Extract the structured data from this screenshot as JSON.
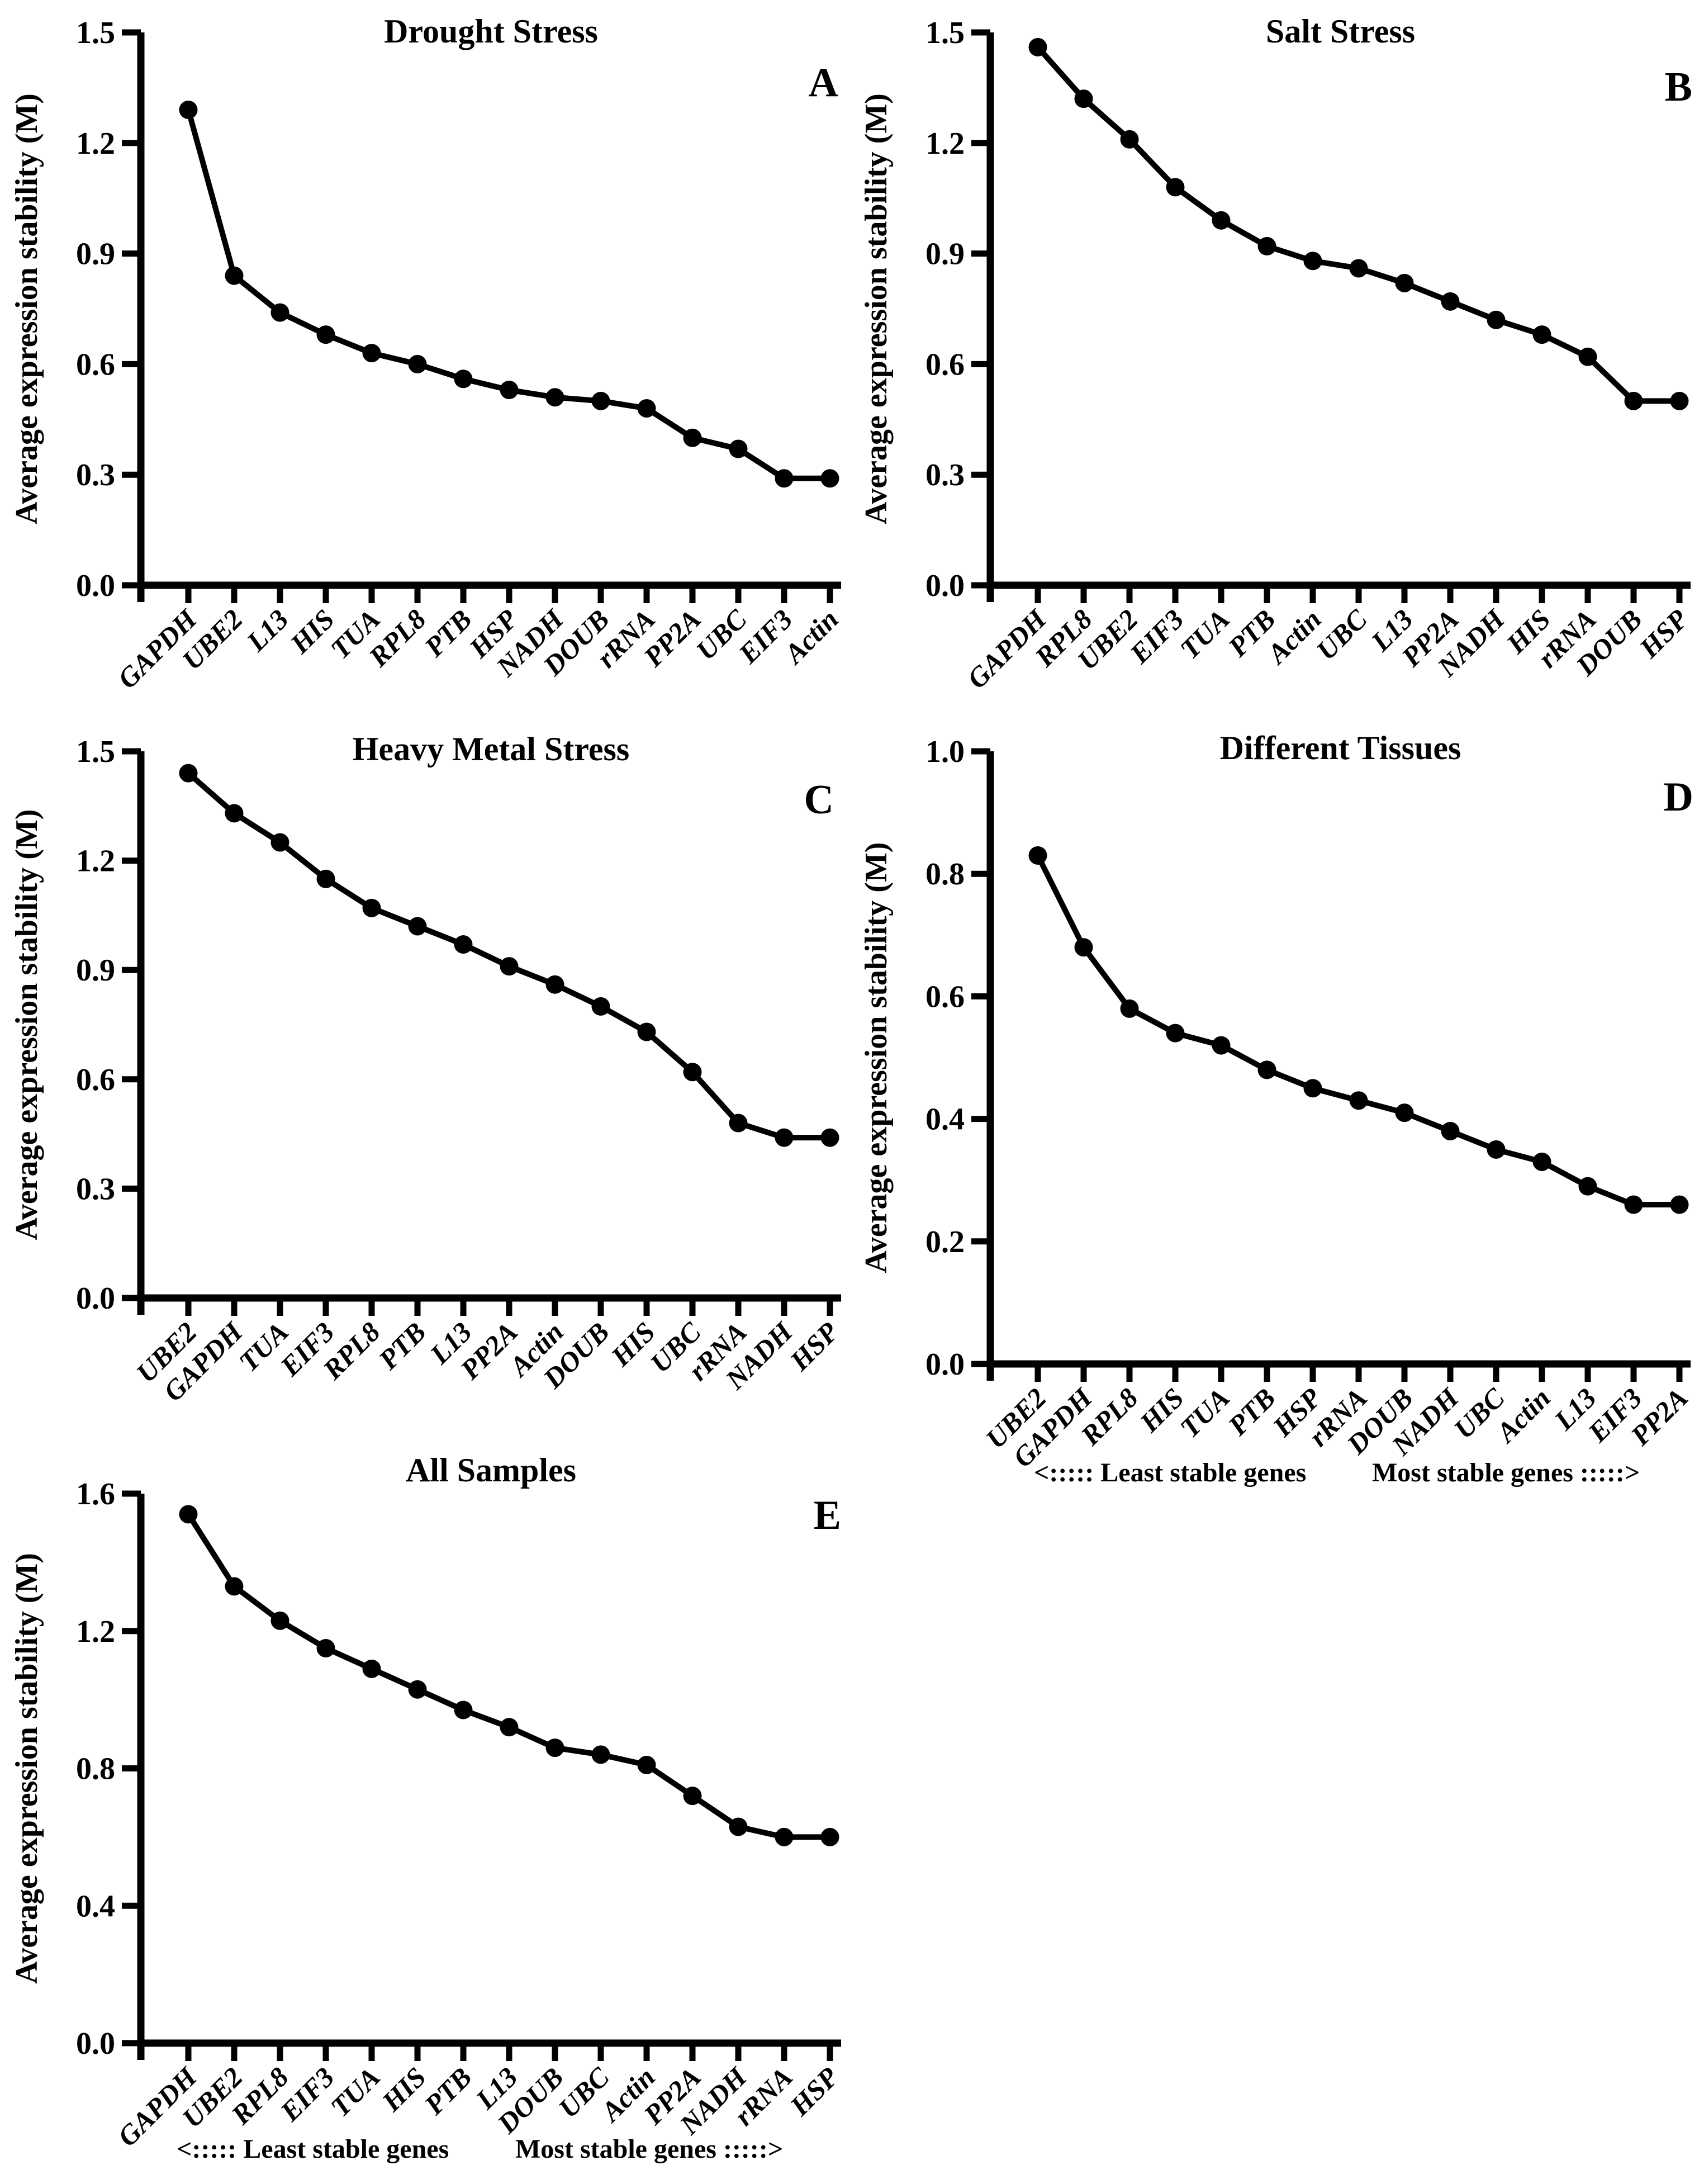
{
  "figure": {
    "background_color": "#ffffff",
    "ink_color": "#000000",
    "shared_ylabel": "Average expression stability (M)"
  },
  "chart_data": [
    {
      "type": "line",
      "panel_label": "A",
      "title": "Drought Stress",
      "xlabel": "",
      "ylabel": "Average expression stability (M)",
      "ylim": [
        0.0,
        1.5
      ],
      "yticks": [
        "0.0",
        "0.3",
        "0.6",
        "0.9",
        "1.2",
        "1.5"
      ],
      "grid": false,
      "legend": null,
      "categories": [
        "GAPDH",
        "UBE2",
        "L13",
        "HIS",
        "TUA",
        "RPL8",
        "PTB",
        "HSP",
        "NADH",
        "DOUB",
        "rRNA",
        "PP2A",
        "UBC",
        "EIF3",
        "Actin"
      ],
      "values": [
        1.29,
        0.84,
        0.74,
        0.68,
        0.63,
        0.6,
        0.56,
        0.53,
        0.51,
        0.5,
        0.48,
        0.4,
        0.37,
        0.29,
        0.29
      ],
      "footer_left": null,
      "footer_right": null
    },
    {
      "type": "line",
      "panel_label": "B",
      "title": "Salt Stress",
      "xlabel": "",
      "ylabel": "Average expression stability (M)",
      "ylim": [
        0.0,
        1.5
      ],
      "yticks": [
        "0.0",
        "0.3",
        "0.6",
        "0.9",
        "1.2",
        "1.5"
      ],
      "grid": false,
      "legend": null,
      "categories": [
        "GAPDH",
        "RPL8",
        "UBE2",
        "EIF3",
        "TUA",
        "PTB",
        "Actin",
        "UBC",
        "L13",
        "PP2A",
        "NADH",
        "HIS",
        "rRNA",
        "DOUB",
        "HSP"
      ],
      "values": [
        1.46,
        1.32,
        1.21,
        1.08,
        0.99,
        0.92,
        0.88,
        0.86,
        0.82,
        0.77,
        0.72,
        0.68,
        0.62,
        0.5,
        0.5
      ],
      "footer_left": null,
      "footer_right": null
    },
    {
      "type": "line",
      "panel_label": "C",
      "title": "Heavy Metal Stress",
      "xlabel": "",
      "ylabel": "Average expression stability (M)",
      "ylim": [
        0.0,
        1.5
      ],
      "yticks": [
        "0.0",
        "0.3",
        "0.6",
        "0.9",
        "1.2",
        "1.5"
      ],
      "grid": false,
      "legend": null,
      "categories": [
        "UBE2",
        "GAPDH",
        "TUA",
        "EIF3",
        "RPL8",
        "PTB",
        "L13",
        "PP2A",
        "Actin",
        "DOUB",
        "HIS",
        "UBC",
        "rRNA",
        "NADH",
        "HSP"
      ],
      "values": [
        1.44,
        1.33,
        1.25,
        1.15,
        1.07,
        1.02,
        0.97,
        0.91,
        0.86,
        0.8,
        0.73,
        0.62,
        0.48,
        0.44,
        0.44
      ],
      "footer_left": null,
      "footer_right": null
    },
    {
      "type": "line",
      "panel_label": "D",
      "title": "Different Tissues",
      "xlabel": "",
      "ylabel": "Average expression stability (M)",
      "ylim": [
        0.0,
        1.0
      ],
      "yticks": [
        "0.0",
        "0.2",
        "0.4",
        "0.6",
        "0.8",
        "1.0"
      ],
      "grid": false,
      "legend": null,
      "categories": [
        "UBE2",
        "GAPDH",
        "RPL8",
        "HIS",
        "TUA",
        "PTB",
        "HSP",
        "rRNA",
        "DOUB",
        "NADH",
        "UBC",
        "Actin",
        "L13",
        "EIF3",
        "PP2A"
      ],
      "values": [
        0.83,
        0.68,
        0.58,
        0.54,
        0.52,
        0.48,
        0.45,
        0.43,
        0.41,
        0.38,
        0.35,
        0.33,
        0.29,
        0.26,
        0.26
      ],
      "footer_left": "<:::::  Least stable genes",
      "footer_right": "Most stable genes  :::::>"
    },
    {
      "type": "line",
      "panel_label": "E",
      "title": "All Samples",
      "xlabel": "",
      "ylabel": "Average expression stability (M)",
      "ylim": [
        0.0,
        1.6
      ],
      "yticks": [
        "0.0",
        "0.4",
        "0.8",
        "1.2",
        "1.6"
      ],
      "grid": false,
      "legend": null,
      "categories": [
        "GAPDH",
        "UBE2",
        "RPL8",
        "EIF3",
        "TUA",
        "HIS",
        "PTB",
        "L13",
        "DOUB",
        "UBC",
        "Actin",
        "PP2A",
        "NADH",
        "rRNA",
        "HSP"
      ],
      "values": [
        1.54,
        1.33,
        1.23,
        1.15,
        1.09,
        1.03,
        0.97,
        0.92,
        0.86,
        0.84,
        0.81,
        0.72,
        0.63,
        0.6,
        0.6
      ],
      "footer_left": "<:::::  Least stable genes",
      "footer_right": "Most stable genes  :::::>"
    }
  ]
}
